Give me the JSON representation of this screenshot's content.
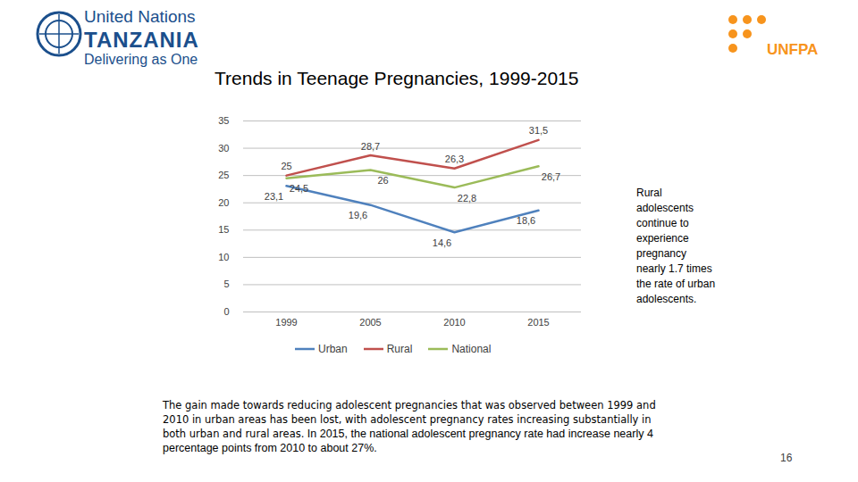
{
  "header": {
    "org": "United Nations",
    "country": "TANZANIA",
    "tagline": "Delivering as One",
    "partner": "UNFPA"
  },
  "chart_data": {
    "type": "line",
    "title": "Trends in Teenage Pregnancies, 1999-2015",
    "categories": [
      "1999",
      "2005",
      "2010",
      "2015"
    ],
    "series": [
      {
        "name": "Urban",
        "color": "#4f81bd",
        "values": [
          23.1,
          19.6,
          14.6,
          18.6
        ],
        "value_labels": [
          "23,1",
          "19,6",
          "14,6",
          "18,6"
        ]
      },
      {
        "name": "Rural",
        "color": "#c0504d",
        "values": [
          25,
          28.7,
          26.3,
          31.5
        ],
        "value_labels": [
          "25",
          "28,7",
          "26,3",
          "31,5"
        ]
      },
      {
        "name": "National",
        "color": "#9bbb59",
        "values": [
          24.5,
          26,
          22.8,
          26.7
        ],
        "value_labels": [
          "24,5",
          "26",
          "22,8",
          "26,7"
        ]
      }
    ],
    "ylim": [
      0,
      35
    ],
    "yticks": [
      0,
      5,
      10,
      15,
      20,
      25,
      30,
      35
    ],
    "grid": true,
    "legend": "bottom",
    "data_labels": true,
    "annotations": [
      "Rural adolescents continue to experience pregnancy nearly 1.7 times the rate of urban adolescents."
    ],
    "caption": [
      "The gain made towards reducing adolescent pregnancies that was observed between 1999 and 2010 in urban areas has been lost, with adolescent pregnancy rates increasing substantially in both urban and rural areas.",
      "In 2015, the national adolescent pregnancy rate had increase nearly 4 percentage points from 2010 to about 27%."
    ]
  },
  "page_number": 16
}
